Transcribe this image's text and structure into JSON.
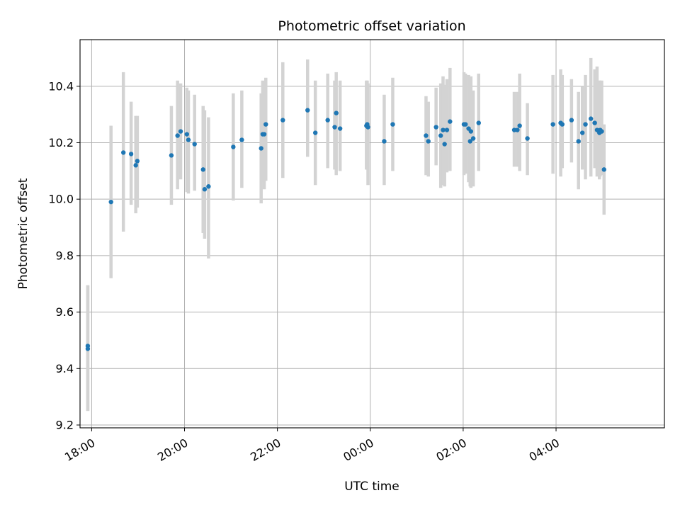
{
  "chart_data": {
    "type": "scatter",
    "title": "Photometric offset variation",
    "xlabel": "UTC time",
    "ylabel": "Photometric offset",
    "x_ticks": [
      "18:00",
      "20:00",
      "22:00",
      "00:00",
      "02:00",
      "04:00"
    ],
    "y_ticks": [
      "9.2",
      "9.4",
      "9.6",
      "9.8",
      "10.0",
      "10.2",
      "10.4"
    ],
    "ylim": [
      9.19,
      10.565
    ],
    "xlim": [
      "17:45",
      "06:20"
    ],
    "grid": true,
    "error_bar_color": "#d3d3d3",
    "marker_color": "#1f77b4",
    "series": [
      {
        "x": [
          "17:55",
          "17:55",
          "18:25",
          "18:41",
          "18:51",
          "18:57",
          "18:59",
          "19:43",
          "19:51",
          "19:55",
          "20:03",
          "20:05",
          "20:13",
          "20:24",
          "20:26",
          "20:31",
          "21:03",
          "21:14",
          "21:39",
          "21:41",
          "21:43",
          "21:45",
          "22:07",
          "22:39",
          "22:49",
          "23:05",
          "23:14",
          "23:16",
          "23:21",
          "23:55",
          "23:56",
          "23:57",
          "00:18",
          "00:29",
          "01:12",
          "01:15",
          "01:25",
          "01:31",
          "01:34",
          "01:36",
          "01:39",
          "01:43",
          "02:01",
          "02:03",
          "02:07",
          "02:09",
          "02:10",
          "02:13",
          "02:20",
          "03:06",
          "03:10",
          "03:13",
          "03:23",
          "03:56",
          "04:06",
          "04:08",
          "04:20",
          "04:29",
          "04:34",
          "04:38",
          "04:45",
          "04:50",
          "04:53",
          "04:56",
          "04:57",
          "04:59",
          "05:02"
        ],
        "y": [
          9.48,
          9.47,
          9.99,
          10.165,
          10.16,
          10.12,
          10.135,
          10.155,
          10.225,
          10.24,
          10.23,
          10.21,
          10.195,
          10.105,
          10.035,
          10.045,
          10.185,
          10.21,
          10.18,
          10.23,
          10.23,
          10.265,
          10.28,
          10.315,
          10.235,
          10.28,
          10.255,
          10.305,
          10.25,
          10.26,
          10.265,
          10.255,
          10.205,
          10.265,
          10.225,
          10.205,
          10.255,
          10.225,
          10.245,
          10.195,
          10.245,
          10.275,
          10.265,
          10.265,
          10.25,
          10.205,
          10.24,
          10.215,
          10.27,
          10.245,
          10.245,
          10.26,
          10.215,
          10.265,
          10.27,
          10.265,
          10.28,
          10.205,
          10.235,
          10.265,
          10.285,
          10.27,
          10.245,
          10.235,
          10.245,
          10.24,
          10.105
        ],
        "err_low": [
          9.25,
          9.25,
          9.72,
          9.885,
          9.98,
          9.95,
          9.97,
          9.98,
          10.035,
          10.07,
          10.025,
          10.02,
          10.03,
          9.88,
          9.86,
          9.79,
          9.995,
          10.04,
          9.985,
          10.06,
          10.035,
          10.065,
          10.075,
          10.15,
          10.05,
          10.11,
          10.105,
          10.085,
          10.1,
          10.105,
          10.105,
          10.05,
          10.05,
          10.1,
          10.085,
          10.08,
          10.12,
          10.04,
          10.05,
          10.045,
          10.095,
          10.1,
          10.085,
          10.09,
          10.06,
          10.045,
          10.04,
          10.045,
          10.1,
          10.115,
          10.115,
          10.1,
          10.085,
          10.09,
          10.08,
          10.11,
          10.13,
          10.035,
          10.105,
          10.07,
          10.08,
          10.11,
          10.08,
          10.07,
          10.08,
          10.085,
          9.945
        ],
        "err_high": [
          9.695,
          9.695,
          10.26,
          10.45,
          10.345,
          10.295,
          10.295,
          10.33,
          10.42,
          10.41,
          10.395,
          10.385,
          10.37,
          10.33,
          10.315,
          10.29,
          10.375,
          10.385,
          10.375,
          10.42,
          10.41,
          10.43,
          10.485,
          10.495,
          10.42,
          10.445,
          10.42,
          10.45,
          10.42,
          10.42,
          10.42,
          10.41,
          10.37,
          10.43,
          10.365,
          10.345,
          10.395,
          10.41,
          10.435,
          10.405,
          10.425,
          10.465,
          10.45,
          10.445,
          10.44,
          10.415,
          10.435,
          10.385,
          10.445,
          10.38,
          10.38,
          10.445,
          10.34,
          10.44,
          10.46,
          10.44,
          10.425,
          10.38,
          10.4,
          10.44,
          10.5,
          10.46,
          10.47,
          10.42,
          10.42,
          10.42,
          10.265
        ]
      }
    ]
  }
}
